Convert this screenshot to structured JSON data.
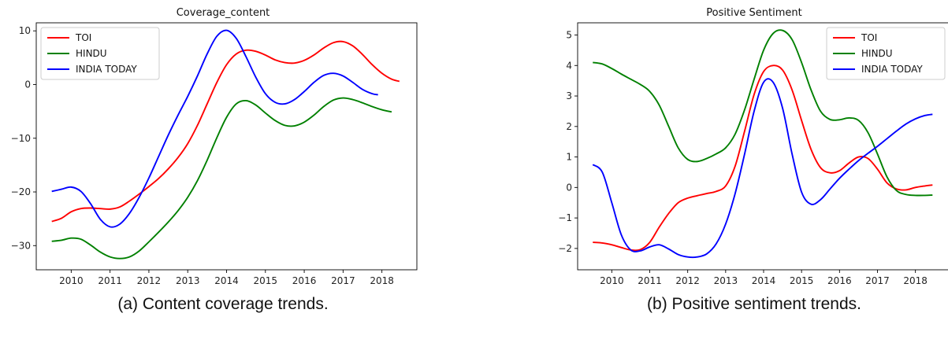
{
  "chart_data": [
    {
      "type": "line",
      "title": "Coverage_content",
      "caption": "(a) Content coverage trends.",
      "xlabel": "",
      "ylabel": "",
      "x_ticks": [
        2010,
        2011,
        2012,
        2013,
        2014,
        2015,
        2016,
        2017,
        2018
      ],
      "y_ticks": [
        10,
        0,
        -10,
        -20,
        -30
      ],
      "xlim": [
        2009.1,
        2018.9
      ],
      "ylim": [
        -34.5,
        11.5
      ],
      "grid": false,
      "legend_position": "top-left",
      "series": [
        {
          "name": "TOI",
          "color": "#ff0000",
          "x": [
            2009.5,
            2009.75,
            2010.0,
            2010.25,
            2010.5,
            2010.75,
            2011.0,
            2011.25,
            2011.5,
            2011.75,
            2012.0,
            2012.25,
            2012.5,
            2012.75,
            2013.0,
            2013.25,
            2013.5,
            2013.75,
            2014.0,
            2014.25,
            2014.5,
            2014.75,
            2015.0,
            2015.25,
            2015.5,
            2015.75,
            2016.0,
            2016.25,
            2016.5,
            2016.75,
            2017.0,
            2017.25,
            2017.5,
            2017.75,
            2018.0,
            2018.25,
            2018.45
          ],
          "y": [
            -25.5,
            -24.9,
            -23.7,
            -23.1,
            -23.0,
            -23.1,
            -23.2,
            -22.8,
            -21.7,
            -20.4,
            -19.0,
            -17.5,
            -15.7,
            -13.6,
            -11.0,
            -7.6,
            -3.6,
            0.4,
            3.7,
            5.7,
            6.4,
            6.2,
            5.5,
            4.6,
            4.1,
            4.0,
            4.5,
            5.5,
            6.8,
            7.8,
            8.0,
            7.2,
            5.6,
            3.7,
            2.1,
            1.0,
            0.6
          ]
        },
        {
          "name": "HINDU",
          "color": "#008000",
          "x": [
            2009.5,
            2009.75,
            2010.0,
            2010.25,
            2010.5,
            2010.75,
            2011.0,
            2011.25,
            2011.5,
            2011.75,
            2012.0,
            2012.25,
            2012.5,
            2012.75,
            2013.0,
            2013.25,
            2013.5,
            2013.75,
            2014.0,
            2014.25,
            2014.5,
            2014.75,
            2015.0,
            2015.25,
            2015.5,
            2015.75,
            2016.0,
            2016.25,
            2016.5,
            2016.75,
            2017.0,
            2017.25,
            2017.5,
            2017.75,
            2018.0,
            2018.25
          ],
          "y": [
            -29.2,
            -29.0,
            -28.6,
            -28.8,
            -29.9,
            -31.2,
            -32.1,
            -32.4,
            -32.1,
            -31.0,
            -29.3,
            -27.5,
            -25.6,
            -23.5,
            -21.0,
            -17.9,
            -14.1,
            -9.9,
            -6.1,
            -3.6,
            -3.0,
            -3.8,
            -5.3,
            -6.7,
            -7.6,
            -7.7,
            -7.0,
            -5.7,
            -4.1,
            -2.9,
            -2.5,
            -2.8,
            -3.4,
            -4.1,
            -4.7,
            -5.1
          ]
        },
        {
          "name": "INDIA TODAY",
          "color": "#0000ff",
          "x": [
            2009.5,
            2009.75,
            2010.0,
            2010.25,
            2010.5,
            2010.75,
            2011.0,
            2011.25,
            2011.5,
            2011.75,
            2012.0,
            2012.25,
            2012.5,
            2012.75,
            2013.0,
            2013.25,
            2013.5,
            2013.75,
            2014.0,
            2014.25,
            2014.5,
            2014.75,
            2015.0,
            2015.25,
            2015.5,
            2015.75,
            2016.0,
            2016.25,
            2016.5,
            2016.75,
            2017.0,
            2017.25,
            2017.5,
            2017.75,
            2017.9
          ],
          "y": [
            -19.9,
            -19.5,
            -19.1,
            -19.9,
            -22.2,
            -25.1,
            -26.5,
            -26.0,
            -24.0,
            -21.0,
            -17.4,
            -13.4,
            -9.4,
            -5.7,
            -2.2,
            1.6,
            5.7,
            9.0,
            10.1,
            8.6,
            5.2,
            1.4,
            -1.7,
            -3.3,
            -3.6,
            -2.8,
            -1.3,
            0.4,
            1.7,
            2.1,
            1.6,
            0.4,
            -0.9,
            -1.7,
            -1.9
          ]
        }
      ]
    },
    {
      "type": "line",
      "title": "Positive Sentiment",
      "caption": "(b) Positive sentiment trends.",
      "xlabel": "",
      "ylabel": "",
      "x_ticks": [
        2010,
        2011,
        2012,
        2013,
        2014,
        2015,
        2016,
        2017,
        2018
      ],
      "y_ticks": [
        5,
        4,
        3,
        2,
        1,
        0,
        -1,
        -2
      ],
      "xlim": [
        2009.1,
        2018.9
      ],
      "ylim": [
        -2.7,
        5.4
      ],
      "grid": false,
      "legend_position": "top-right",
      "series": [
        {
          "name": "TOI",
          "color": "#ff0000",
          "x": [
            2009.5,
            2009.75,
            2010.0,
            2010.25,
            2010.5,
            2010.75,
            2011.0,
            2011.25,
            2011.5,
            2011.75,
            2012.0,
            2012.25,
            2012.5,
            2012.75,
            2013.0,
            2013.25,
            2013.5,
            2013.75,
            2014.0,
            2014.25,
            2014.5,
            2014.75,
            2015.0,
            2015.25,
            2015.5,
            2015.75,
            2016.0,
            2016.25,
            2016.5,
            2016.75,
            2017.0,
            2017.25,
            2017.5,
            2017.75,
            2018.0,
            2018.25,
            2018.45
          ],
          "y": [
            -1.8,
            -1.82,
            -1.88,
            -1.97,
            -2.05,
            -2.04,
            -1.8,
            -1.3,
            -0.85,
            -0.5,
            -0.35,
            -0.27,
            -0.2,
            -0.13,
            0.05,
            0.7,
            1.85,
            3.05,
            3.8,
            4.0,
            3.85,
            3.2,
            2.2,
            1.25,
            0.65,
            0.48,
            0.55,
            0.8,
            1.0,
            0.95,
            0.6,
            0.15,
            -0.05,
            -0.08,
            0.0,
            0.05,
            0.08
          ]
        },
        {
          "name": "HINDU",
          "color": "#008000",
          "x": [
            2009.5,
            2009.75,
            2010.0,
            2010.25,
            2010.5,
            2010.75,
            2011.0,
            2011.25,
            2011.5,
            2011.75,
            2012.0,
            2012.25,
            2012.5,
            2012.75,
            2013.0,
            2013.25,
            2013.5,
            2013.75,
            2014.0,
            2014.25,
            2014.5,
            2014.75,
            2015.0,
            2015.25,
            2015.5,
            2015.75,
            2016.0,
            2016.25,
            2016.5,
            2016.75,
            2017.0,
            2017.25,
            2017.5,
            2017.75,
            2018.0,
            2018.25,
            2018.45
          ],
          "y": [
            4.1,
            4.05,
            3.9,
            3.72,
            3.55,
            3.38,
            3.15,
            2.7,
            2.0,
            1.3,
            0.92,
            0.85,
            0.95,
            1.1,
            1.3,
            1.75,
            2.55,
            3.55,
            4.5,
            5.05,
            5.15,
            4.85,
            4.1,
            3.2,
            2.5,
            2.23,
            2.22,
            2.28,
            2.2,
            1.8,
            1.1,
            0.35,
            -0.1,
            -0.23,
            -0.26,
            -0.26,
            -0.25
          ]
        },
        {
          "name": "INDIA TODAY",
          "color": "#0000ff",
          "x": [
            2009.5,
            2009.75,
            2010.0,
            2010.25,
            2010.5,
            2010.75,
            2011.0,
            2011.25,
            2011.5,
            2011.75,
            2012.0,
            2012.25,
            2012.5,
            2012.75,
            2013.0,
            2013.25,
            2013.5,
            2013.75,
            2014.0,
            2014.25,
            2014.5,
            2014.75,
            2015.0,
            2015.25,
            2015.5,
            2015.75,
            2016.0,
            2016.25,
            2016.5,
            2016.75,
            2017.0,
            2017.25,
            2017.5,
            2017.75,
            2018.0,
            2018.25,
            2018.45
          ],
          "y": [
            0.75,
            0.5,
            -0.5,
            -1.55,
            -2.05,
            -2.08,
            -1.95,
            -1.88,
            -2.02,
            -2.2,
            -2.28,
            -2.28,
            -2.18,
            -1.85,
            -1.2,
            -0.2,
            1.1,
            2.5,
            3.45,
            3.45,
            2.6,
            1.1,
            -0.15,
            -0.55,
            -0.4,
            -0.05,
            0.3,
            0.6,
            0.88,
            1.12,
            1.35,
            1.6,
            1.85,
            2.08,
            2.25,
            2.36,
            2.4
          ]
        }
      ]
    }
  ]
}
